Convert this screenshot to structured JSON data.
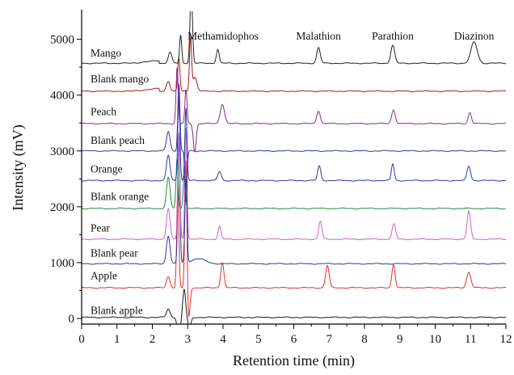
{
  "chart_data": {
    "type": "line",
    "title": "",
    "xlabel": "Retention time (min)",
    "ylabel": "Intensity (mV)",
    "xlim": [
      0,
      12
    ],
    "ylim": [
      -100,
      5500
    ],
    "xticks": [
      0,
      1,
      2,
      3,
      4,
      5,
      6,
      7,
      8,
      9,
      10,
      11,
      12
    ],
    "yticks": [
      0,
      1000,
      2000,
      3000,
      4000,
      5000
    ],
    "grid": false,
    "peak_labels": [
      {
        "text": "Methamidophos",
        "x": 4.0
      },
      {
        "text": "Malathion",
        "x": 6.7
      },
      {
        "text": "Parathion",
        "x": 8.8
      },
      {
        "text": "Diazinon",
        "x": 11.1
      }
    ],
    "series": [
      {
        "name": "Blank apple",
        "color": "#1a1a1a",
        "baseline": 20,
        "label_x": 0.25,
        "label_y": 80,
        "peaks": [
          [
            2.45,
            150,
            0.05
          ],
          [
            2.75,
            -450,
            0.04
          ],
          [
            2.9,
            500,
            0.04
          ],
          [
            3.05,
            -220,
            0.04
          ]
        ]
      },
      {
        "name": "Apple",
        "color": "#e0302a",
        "baseline": 550,
        "label_x": 0.25,
        "label_y": 700,
        "peaks": [
          [
            2.45,
            200,
            0.05
          ],
          [
            2.72,
            1800,
            0.03
          ],
          [
            2.95,
            2400,
            0.03
          ],
          [
            3.02,
            -600,
            0.04
          ],
          [
            3.98,
            450,
            0.045
          ],
          [
            6.95,
            400,
            0.05
          ],
          [
            8.82,
            420,
            0.045
          ],
          [
            10.95,
            280,
            0.06
          ]
        ]
      },
      {
        "name": "Blank pear",
        "color": "#2a3a9c",
        "baseline": 980,
        "label_x": 0.25,
        "label_y": 1110,
        "peaks": [
          [
            2.45,
            500,
            0.05
          ],
          [
            2.75,
            2200,
            0.03
          ],
          [
            2.95,
            1500,
            0.03
          ],
          [
            3.3,
            90,
            0.2
          ]
        ]
      },
      {
        "name": "Pear",
        "color": "#d060c8",
        "baseline": 1420,
        "label_x": 0.25,
        "label_y": 1560,
        "peaks": [
          [
            2.45,
            550,
            0.05
          ],
          [
            2.75,
            1900,
            0.03
          ],
          [
            2.95,
            2000,
            0.03
          ],
          [
            3.9,
            230,
            0.04
          ],
          [
            6.75,
            320,
            0.045
          ],
          [
            8.83,
            270,
            0.05
          ],
          [
            10.95,
            500,
            0.05
          ]
        ]
      },
      {
        "name": "Blank orange",
        "color": "#1f8f3a",
        "baseline": 1970,
        "label_x": 0.25,
        "label_y": 2120,
        "peaks": [
          [
            2.45,
            550,
            0.05
          ],
          [
            2.7,
            900,
            0.03
          ],
          [
            2.9,
            600,
            0.03
          ]
        ]
      },
      {
        "name": "Orange",
        "color": "#2a3a9c",
        "baseline": 2470,
        "label_x": 0.25,
        "label_y": 2610,
        "peaks": [
          [
            2.45,
            450,
            0.05
          ],
          [
            2.75,
            1600,
            0.03
          ],
          [
            2.95,
            1300,
            0.03
          ],
          [
            3.9,
            160,
            0.05
          ],
          [
            6.72,
            260,
            0.045
          ],
          [
            8.8,
            300,
            0.04
          ],
          [
            10.95,
            260,
            0.05
          ]
        ]
      },
      {
        "name": "Blank peach",
        "color": "#2a3a9c",
        "baseline": 3000,
        "label_x": 0.25,
        "label_y": 3130,
        "peaks": [
          [
            2.45,
            350,
            0.05
          ],
          [
            2.75,
            1200,
            0.03
          ],
          [
            2.95,
            -900,
            0.03
          ]
        ]
      },
      {
        "name": "Peach",
        "color": "#8a2a9c",
        "baseline": 3490,
        "label_x": 0.25,
        "label_y": 3640,
        "peaks": [
          [
            2.7,
            1000,
            0.03
          ],
          [
            2.95,
            600,
            0.03
          ],
          [
            3.2,
            -500,
            0.04
          ],
          [
            3.98,
            350,
            0.06
          ],
          [
            6.7,
            230,
            0.05
          ],
          [
            8.82,
            250,
            0.05
          ],
          [
            10.98,
            200,
            0.045
          ]
        ]
      },
      {
        "name": "Blank mango",
        "color": "#a0201a",
        "baseline": 4070,
        "label_x": 0.25,
        "label_y": 4230,
        "peaks": [
          [
            2.45,
            180,
            0.05
          ],
          [
            2.75,
            600,
            0.03
          ],
          [
            3.08,
            950,
            0.03
          ],
          [
            3.2,
            250,
            0.06
          ]
        ]
      },
      {
        "name": "Mango",
        "color": "#222222",
        "baseline": 4570,
        "label_x": 0.25,
        "label_y": 4690,
        "peaks": [
          [
            2.5,
            200,
            0.05
          ],
          [
            2.8,
            500,
            0.03
          ],
          [
            3.1,
            1300,
            0.035
          ],
          [
            3.85,
            250,
            0.04
          ],
          [
            6.7,
            280,
            0.05
          ],
          [
            8.8,
            320,
            0.055
          ],
          [
            11.1,
            380,
            0.09
          ]
        ]
      }
    ]
  }
}
